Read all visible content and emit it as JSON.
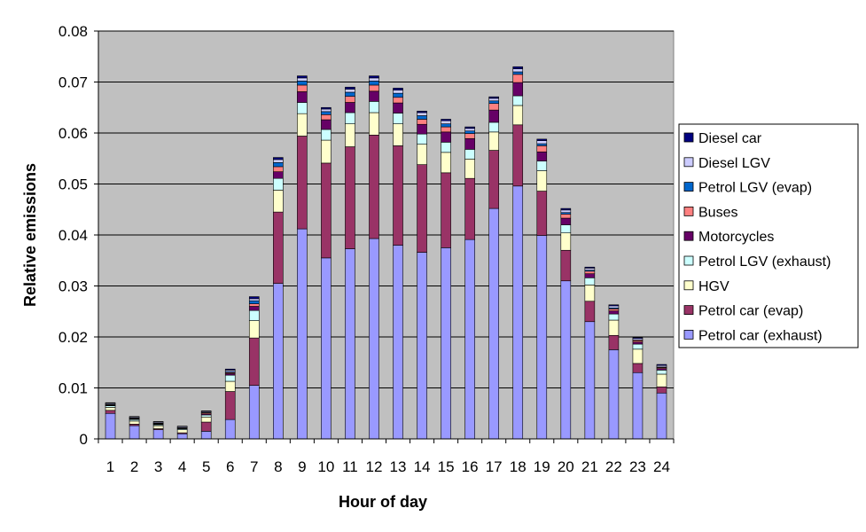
{
  "chart_data": {
    "type": "bar",
    "stacked": true,
    "title": "",
    "xlabel": "Hour of day",
    "ylabel": "Relative emissions",
    "ylim": [
      0,
      0.08
    ],
    "y_ticks": [
      "0",
      "0.01",
      "0.02",
      "0.03",
      "0.04",
      "0.05",
      "0.06",
      "0.07",
      "0.08"
    ],
    "grid": true,
    "legend_position": "right",
    "plot_background": "#c0c0c0",
    "categories": [
      "1",
      "2",
      "3",
      "4",
      "5",
      "6",
      "7",
      "8",
      "9",
      "10",
      "11",
      "12",
      "13",
      "14",
      "15",
      "16",
      "17",
      "18",
      "19",
      "20",
      "21",
      "22",
      "23",
      "24"
    ],
    "series": [
      {
        "name": "Petrol car (exhaust)",
        "color": "#9999ff",
        "values": [
          0.005,
          0.0026,
          0.0018,
          0.001,
          0.0015,
          0.0038,
          0.0105,
          0.0305,
          0.0412,
          0.0355,
          0.0373,
          0.0393,
          0.038,
          0.0366,
          0.0375,
          0.0391,
          0.0452,
          0.0496,
          0.0399,
          0.031,
          0.023,
          0.0175,
          0.013,
          0.009
        ]
      },
      {
        "name": "Petrol car (evap)",
        "color": "#993366",
        "values": [
          0.0006,
          0.0003,
          0.0002,
          0.0002,
          0.0018,
          0.0055,
          0.0093,
          0.014,
          0.0182,
          0.0186,
          0.02,
          0.0203,
          0.0195,
          0.0172,
          0.0147,
          0.012,
          0.0114,
          0.012,
          0.0087,
          0.006,
          0.004,
          0.0028,
          0.0018,
          0.0012
        ]
      },
      {
        "name": "HGV",
        "color": "#ffffcc",
        "values": [
          0.0006,
          0.0006,
          0.0006,
          0.0006,
          0.001,
          0.002,
          0.0034,
          0.0043,
          0.0044,
          0.0045,
          0.0045,
          0.0044,
          0.0043,
          0.004,
          0.004,
          0.0038,
          0.0036,
          0.0038,
          0.004,
          0.0034,
          0.0032,
          0.003,
          0.0028,
          0.0025
        ]
      },
      {
        "name": "Petrol LGV (exhaust)",
        "color": "#ccffff",
        "values": [
          0.0003,
          0.0003,
          0.0002,
          0.0002,
          0.0004,
          0.0012,
          0.002,
          0.0023,
          0.0022,
          0.0021,
          0.0022,
          0.0022,
          0.0021,
          0.002,
          0.002,
          0.0019,
          0.0019,
          0.0019,
          0.0019,
          0.0016,
          0.0014,
          0.0012,
          0.001,
          0.0008
        ]
      },
      {
        "name": "Motorcycles",
        "color": "#660066",
        "values": [
          0.0001,
          0.0001,
          0.0001,
          0.0001,
          0.0002,
          0.0003,
          0.0008,
          0.0013,
          0.0021,
          0.0019,
          0.002,
          0.002,
          0.002,
          0.0019,
          0.002,
          0.0021,
          0.0024,
          0.0026,
          0.0018,
          0.0013,
          0.0008,
          0.0006,
          0.0004,
          0.0003
        ]
      },
      {
        "name": "Buses",
        "color": "#ff8080",
        "values": [
          0.0001,
          0.0001,
          0.0001,
          0.0001,
          0.0002,
          0.0002,
          0.0005,
          0.001,
          0.0013,
          0.001,
          0.0012,
          0.0012,
          0.0011,
          0.001,
          0.001,
          0.001,
          0.0013,
          0.0016,
          0.0012,
          0.0008,
          0.0005,
          0.0004,
          0.0003,
          0.0002
        ]
      },
      {
        "name": "Petrol LGV (evap)",
        "color": "#0066cc",
        "values": [
          0.0001,
          0.0001,
          0.0001,
          0.0,
          0.0001,
          0.0002,
          0.0006,
          0.0008,
          0.0008,
          0.0006,
          0.0008,
          0.0008,
          0.0008,
          0.0007,
          0.0006,
          0.0005,
          0.0005,
          0.0005,
          0.0004,
          0.0003,
          0.0002,
          0.0002,
          0.0001,
          0.0001
        ]
      },
      {
        "name": "Diesel LGV",
        "color": "#ccccff",
        "values": [
          0.0002,
          0.0002,
          0.0002,
          0.0002,
          0.0002,
          0.0003,
          0.0004,
          0.0006,
          0.0006,
          0.0005,
          0.0006,
          0.0006,
          0.0006,
          0.0006,
          0.0006,
          0.0005,
          0.0005,
          0.0006,
          0.0006,
          0.0005,
          0.0004,
          0.0004,
          0.0003,
          0.0003
        ]
      },
      {
        "name": "Diesel car",
        "color": "#000080",
        "values": [
          0.0001,
          0.0001,
          0.0001,
          0.0001,
          0.0001,
          0.0002,
          0.0004,
          0.0004,
          0.0004,
          0.0003,
          0.0004,
          0.0004,
          0.0004,
          0.0003,
          0.0003,
          0.0003,
          0.0003,
          0.0004,
          0.0003,
          0.0003,
          0.0002,
          0.0002,
          0.0002,
          0.0002
        ]
      }
    ],
    "legend_order": [
      "Diesel car",
      "Diesel LGV",
      "Petrol LGV (evap)",
      "Buses",
      "Motorcycles",
      "Petrol LGV (exhaust)",
      "HGV",
      "Petrol car (evap)",
      "Petrol car (exhaust)"
    ]
  }
}
